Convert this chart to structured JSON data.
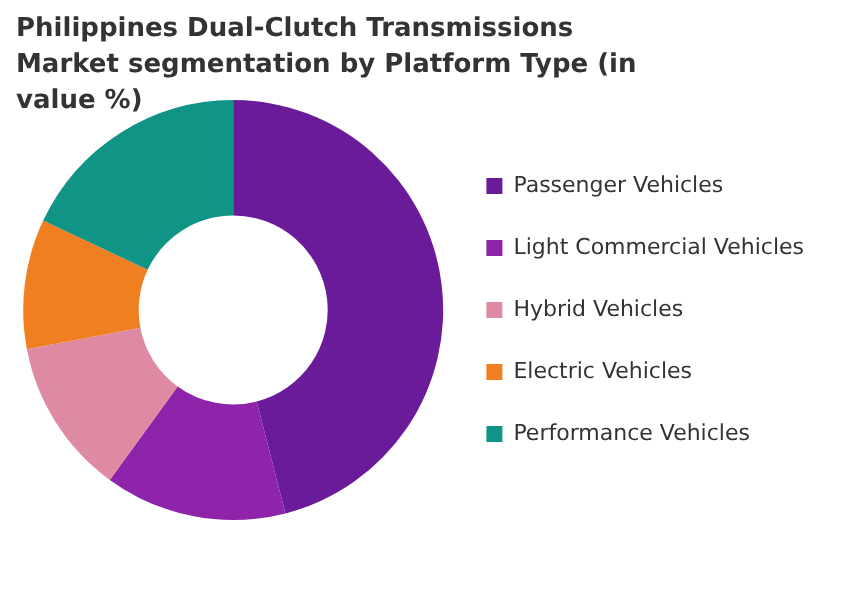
{
  "chart_data": {
    "type": "donut",
    "title": "Philippines Dual-Clutch Transmissions Market segmentation by Platform Type (in value %)",
    "categories": [
      "Passenger Vehicles",
      "Light Commercial Vehicles",
      "Hybrid Vehicles",
      "Electric Vehicles",
      "Performance Vehicles"
    ],
    "values": [
      46,
      14,
      12,
      10,
      18
    ],
    "colors": [
      "#6a1b9a",
      "#8e24aa",
      "#de8aa2",
      "#f07f22",
      "#0f9486"
    ],
    "legend": "right"
  }
}
